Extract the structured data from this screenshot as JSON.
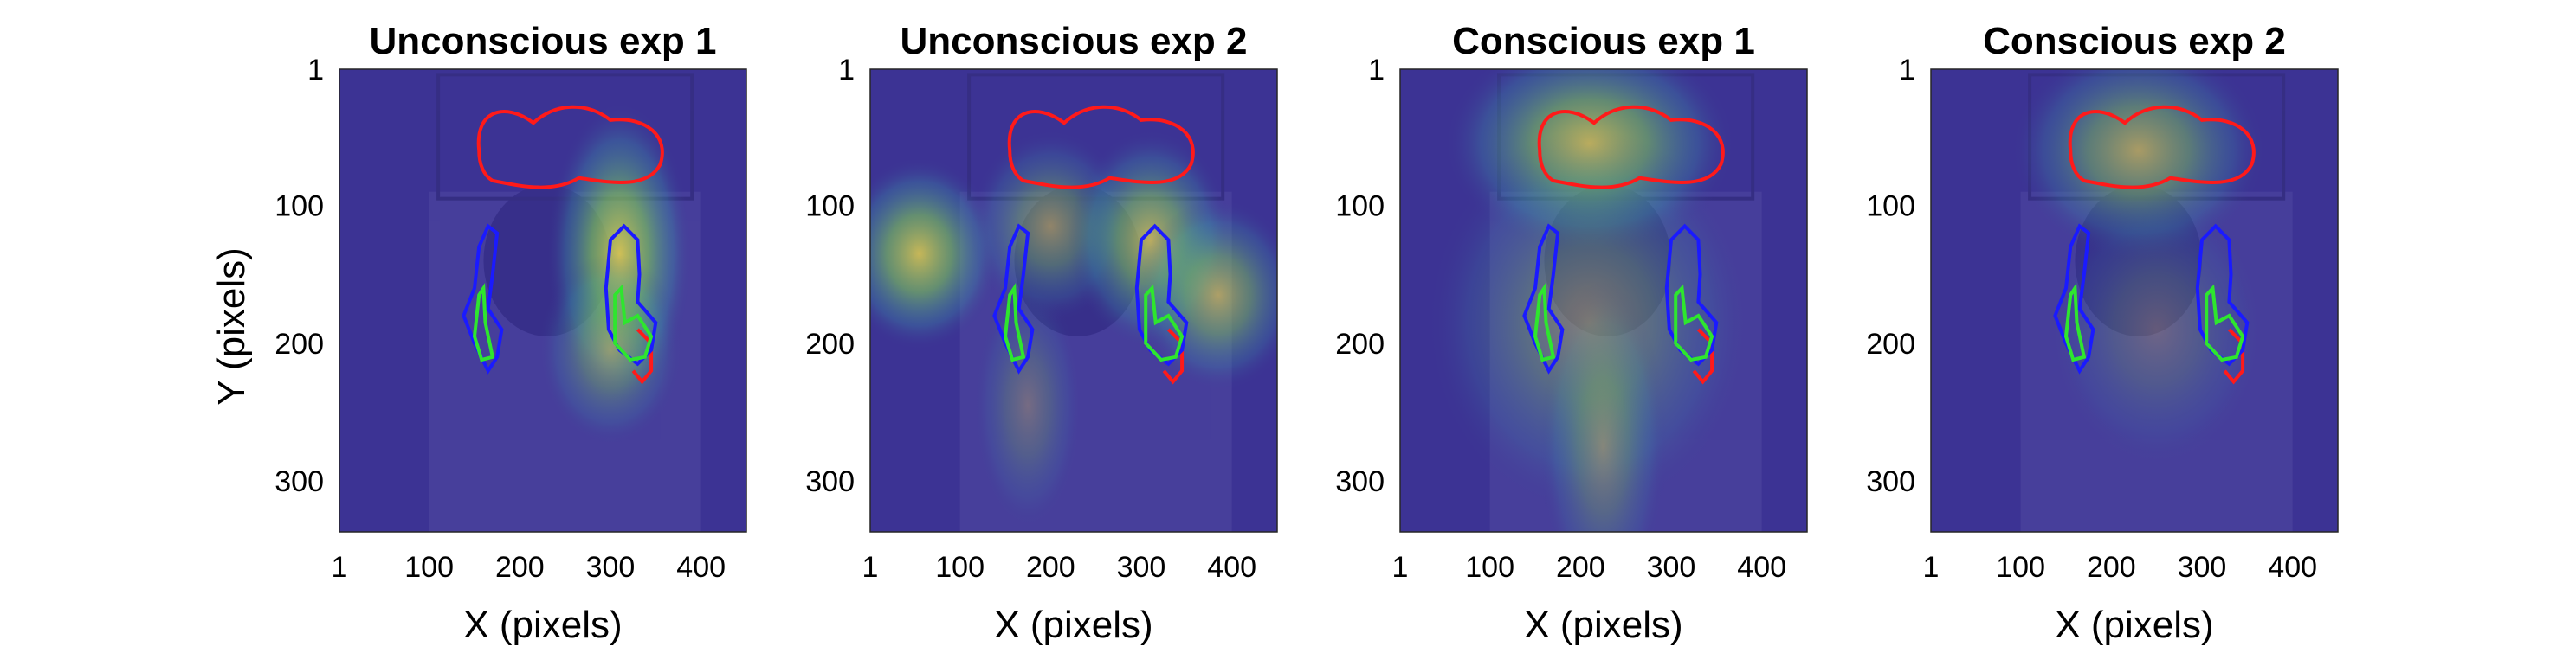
{
  "chart_data": [
    {
      "type": "heatmap",
      "title": "Unconscious exp 1",
      "xlabel": "X (pixels)",
      "ylabel": "Y (pixels)",
      "xticks": [
        "1",
        "100",
        "200",
        "300",
        "400"
      ],
      "yticks": [
        "1",
        "100",
        "200",
        "300"
      ],
      "xlim": [
        1,
        450
      ],
      "ylim": [
        1,
        337
      ],
      "hotspots": [
        {
          "x": 310,
          "y": 135,
          "sx": 40,
          "sy": 55,
          "intensity": 1.0
        },
        {
          "x": 300,
          "y": 205,
          "sx": 40,
          "sy": 35,
          "intensity": 0.55
        }
      ]
    },
    {
      "type": "heatmap",
      "title": "Unconscious exp 2",
      "xlabel": "X (pixels)",
      "ylabel": "",
      "xticks": [
        "1",
        "100",
        "200",
        "300",
        "400"
      ],
      "yticks": [
        "1",
        "100",
        "200",
        "300"
      ],
      "xlim": [
        1,
        450
      ],
      "ylim": [
        1,
        337
      ],
      "hotspots": [
        {
          "x": 55,
          "y": 135,
          "sx": 45,
          "sy": 35,
          "intensity": 0.95
        },
        {
          "x": 200,
          "y": 115,
          "sx": 45,
          "sy": 35,
          "intensity": 0.6
        },
        {
          "x": 310,
          "y": 125,
          "sx": 45,
          "sy": 40,
          "intensity": 0.85
        },
        {
          "x": 385,
          "y": 165,
          "sx": 45,
          "sy": 35,
          "intensity": 0.75
        },
        {
          "x": 175,
          "y": 245,
          "sx": 30,
          "sy": 45,
          "intensity": 0.35
        }
      ]
    },
    {
      "type": "heatmap",
      "title": "Conscious exp 1",
      "xlabel": "X (pixels)",
      "ylabel": "",
      "xticks": [
        "1",
        "100",
        "200",
        "300",
        "400"
      ],
      "yticks": [
        "1",
        "100",
        "200",
        "300"
      ],
      "xlim": [
        1,
        450
      ],
      "ylim": [
        1,
        337
      ],
      "hotspots": [
        {
          "x": 210,
          "y": 55,
          "sx": 80,
          "sy": 40,
          "intensity": 0.9
        },
        {
          "x": 210,
          "y": 185,
          "sx": 90,
          "sy": 70,
          "intensity": 0.5
        },
        {
          "x": 225,
          "y": 275,
          "sx": 35,
          "sy": 60,
          "intensity": 0.45
        }
      ]
    },
    {
      "type": "heatmap",
      "title": "Conscious exp 2",
      "xlabel": "X (pixels)",
      "ylabel": "",
      "xticks": [
        "1",
        "100",
        "200",
        "300",
        "400"
      ],
      "yticks": [
        "1",
        "100",
        "200",
        "300"
      ],
      "xlim": [
        1,
        450
      ],
      "ylim": [
        1,
        337
      ],
      "hotspots": [
        {
          "x": 230,
          "y": 60,
          "sx": 70,
          "sy": 40,
          "intensity": 0.75
        },
        {
          "x": 250,
          "y": 190,
          "sx": 60,
          "sy": 50,
          "intensity": 0.3
        }
      ]
    }
  ],
  "overlay_colors": {
    "background": "#3c3394",
    "red_outline": "#ff1a1a",
    "blue_outline": "#1a1aff",
    "green_outline": "#2ee62e"
  }
}
